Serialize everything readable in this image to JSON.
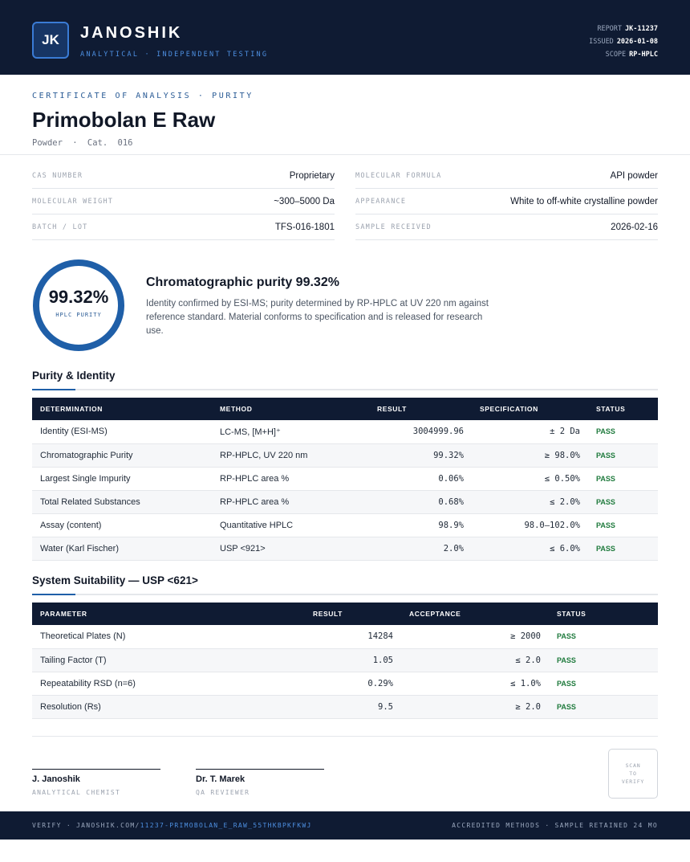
{
  "header": {
    "logo": "JK",
    "brand": "JANOSHIK",
    "tagline": "ANALYTICAL · INDEPENDENT TESTING",
    "meta": [
      {
        "label": "REPORT",
        "value": "JK-11237"
      },
      {
        "label": "ISSUED",
        "value": "2026-01-08"
      },
      {
        "label": "SCOPE",
        "value": "RP-HPLC"
      }
    ]
  },
  "document": {
    "kicker": "CERTIFICATE OF ANALYSIS · PURITY",
    "title": "Primobolan E Raw",
    "subtitle": "Powder · Cat. 016"
  },
  "properties": [
    {
      "label": "CAS NUMBER",
      "value": "Proprietary"
    },
    {
      "label": "MOLECULAR FORMULA",
      "value": "API powder"
    },
    {
      "label": "MOLECULAR WEIGHT",
      "value": "~300–5000 Da"
    },
    {
      "label": "APPEARANCE",
      "value": "White to off-white crystalline powder"
    },
    {
      "label": "BATCH / LOT",
      "value": "TFS-016-1801"
    },
    {
      "label": "SAMPLE RECEIVED",
      "value": "2026-02-16"
    }
  ],
  "summary": {
    "ring_value": "99.32%",
    "ring_label": "HPLC PURITY",
    "heading": "Chromatographic purity 99.32%",
    "text": "Identity confirmed by ESI-MS; purity determined by RP-HPLC at UV 220 nm against reference standard. Material conforms to specification and is released for research use."
  },
  "purity_table": {
    "heading": "Purity & Identity",
    "columns": [
      "DETERMINATION",
      "METHOD",
      "RESULT",
      "SPECIFICATION",
      "STATUS"
    ],
    "rows": [
      [
        "Identity (ESI-MS)",
        "LC-MS, [M+H]⁺",
        "3004999.96",
        "± 2 Da",
        "PASS"
      ],
      [
        "Chromatographic Purity",
        "RP-HPLC, UV 220 nm",
        "99.32%",
        "≥ 98.0%",
        "PASS"
      ],
      [
        "Largest Single Impurity",
        "RP-HPLC area %",
        "0.06%",
        "≤ 0.50%",
        "PASS"
      ],
      [
        "Total Related Substances",
        "RP-HPLC area %",
        "0.68%",
        "≤ 2.0%",
        "PASS"
      ],
      [
        "Assay (content)",
        "Quantitative HPLC",
        "98.9%",
        "98.0–102.0%",
        "PASS"
      ],
      [
        "Water (Karl Fischer)",
        "USP <921>",
        "2.0%",
        "≤ 6.0%",
        "PASS"
      ]
    ]
  },
  "suitability_table": {
    "heading": "System Suitability — USP <621>",
    "columns": [
      "PARAMETER",
      "RESULT",
      "ACCEPTANCE",
      "STATUS"
    ],
    "rows": [
      [
        "Theoretical Plates (N)",
        "14284",
        "≥ 2000",
        "PASS"
      ],
      [
        "Tailing Factor (T)",
        "1.05",
        "≤ 2.0",
        "PASS"
      ],
      [
        "Repeatability RSD (n=6)",
        "0.29%",
        "≤ 1.0%",
        "PASS"
      ],
      [
        "Resolution (Rs)",
        "9.5",
        "≥ 2.0",
        "PASS"
      ]
    ]
  },
  "signatures": [
    {
      "name": "J. Janoshik",
      "role": "ANALYTICAL CHEMIST"
    },
    {
      "name": "Dr. T. Marek",
      "role": "QA REVIEWER"
    }
  ],
  "qr": "SCAN TO VERIFY",
  "footer": {
    "verify": "VERIFY · JANOSHIK.COM/",
    "link": "11237-PRIMOBOLAN_E_RAW_55THKBPKFKWJ",
    "note": "ACCREDITED METHODS · SAMPLE RETAINED 24 MO"
  }
}
